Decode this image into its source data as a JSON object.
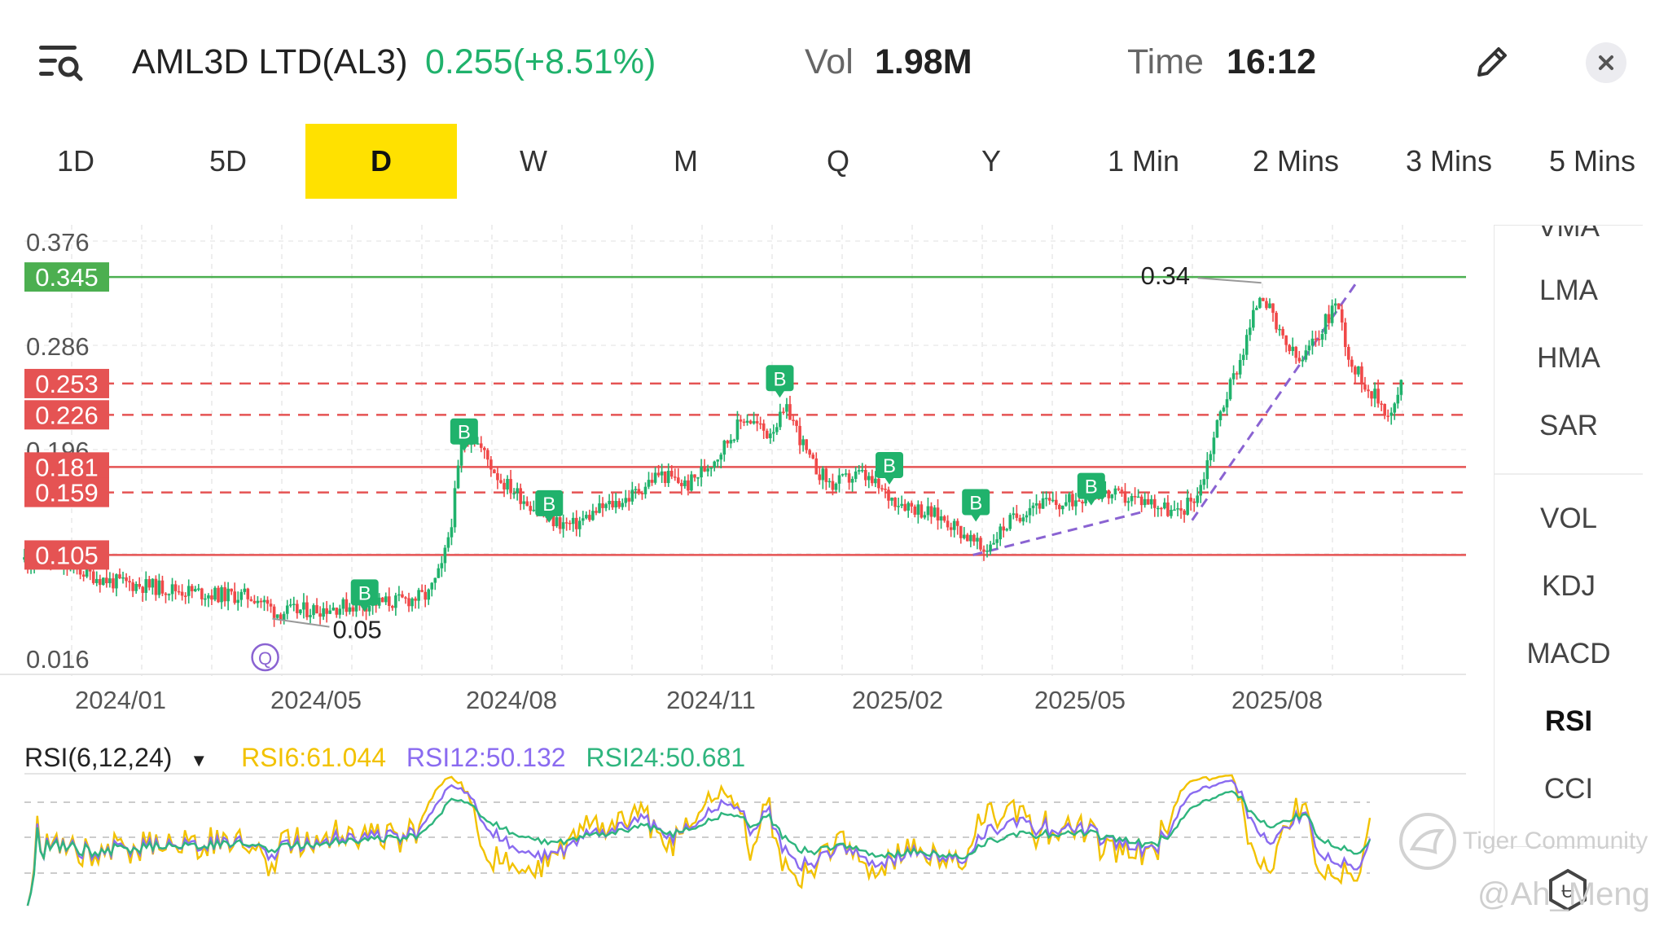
{
  "header": {
    "ticker": "AML3D LTD(AL3)",
    "price": "0.255(+8.51%)",
    "vol_label": "Vol",
    "vol_value": "1.98M",
    "time_label": "Time",
    "time_value": "16:12",
    "icons": {
      "menu": "list-search-icon",
      "edit": "pencil-icon",
      "close": "close-icon"
    }
  },
  "tabs": [
    {
      "label": "1D",
      "active": false
    },
    {
      "label": "5D",
      "active": false
    },
    {
      "label": "D",
      "active": true
    },
    {
      "label": "W",
      "active": false
    },
    {
      "label": "M",
      "active": false
    },
    {
      "label": "Q",
      "active": false
    },
    {
      "label": "Y",
      "active": false
    },
    {
      "label": "1 Min",
      "active": false
    },
    {
      "label": "2 Mins",
      "active": false
    },
    {
      "label": "3 Mins",
      "active": false
    },
    {
      "label": "5 Mins",
      "active": false
    }
  ],
  "side_panel": {
    "top_partial": "VMA",
    "main_items": [
      "LMA",
      "HMA",
      "SAR"
    ],
    "sub_items": [
      "VOL",
      "KDJ",
      "MACD",
      "RSI",
      "CCI"
    ],
    "active": "RSI"
  },
  "rsi_legend": {
    "label": "RSI(6,12,24)",
    "dropdown_icon": "caret-down-icon",
    "rsi6": "RSI6:61.044",
    "rsi12": "RSI12:50.132",
    "rsi24": "RSI24:50.681"
  },
  "watermark": {
    "brand": "Tiger Community",
    "user": "@Ah_Meng"
  },
  "colors": {
    "up": "#20b26c",
    "down": "#f04848",
    "active_tab": "#ffe100",
    "rsi6": "#f2c200",
    "rsi12": "#8a6bf0",
    "rsi24": "#2fb57e",
    "support_line": "#e55353",
    "resistance_line": "#4caf50",
    "trend_line": "#8a63d2"
  },
  "chart_data": [
    {
      "type": "candlestick",
      "x_tick_labels": [
        "2024/01",
        "2024/05",
        "2024/08",
        "2024/11",
        "2025/02",
        "2025/05",
        "2025/08"
      ],
      "y_tick_labels": [
        "0.376",
        "0.286",
        "0.196",
        "0.106",
        "0.016"
      ],
      "ylim": [
        0.016,
        0.376
      ],
      "grid": true,
      "price_levels": [
        {
          "value": 0.345,
          "label": "0.345",
          "style": "solid",
          "color": "green"
        },
        {
          "value": 0.253,
          "label": "0.253",
          "style": "dashed",
          "color": "red"
        },
        {
          "value": 0.226,
          "label": "0.226",
          "style": "dashed",
          "color": "red"
        },
        {
          "value": 0.181,
          "label": "0.181",
          "style": "solid",
          "color": "red"
        },
        {
          "value": 0.159,
          "label": "0.159",
          "style": "dashed",
          "color": "red"
        },
        {
          "value": 0.105,
          "label": "0.105",
          "style": "solid",
          "color": "red"
        }
      ],
      "annotations": [
        {
          "text": "0.34",
          "kind": "high",
          "x": 0.858,
          "price": 0.34
        },
        {
          "text": "0.05",
          "kind": "low",
          "x": 0.172,
          "price": 0.05
        }
      ],
      "buy_markers": [
        {
          "label": "B",
          "x": 0.236,
          "price": 0.06
        },
        {
          "label": "B",
          "x": 0.305,
          "price": 0.199
        },
        {
          "label": "B",
          "x": 0.364,
          "price": 0.137
        },
        {
          "label": "B",
          "x": 0.524,
          "price": 0.245
        },
        {
          "label": "B",
          "x": 0.6,
          "price": 0.17
        },
        {
          "label": "B",
          "x": 0.66,
          "price": 0.138
        },
        {
          "label": "B",
          "x": 0.74,
          "price": 0.152
        }
      ],
      "dip_marker": {
        "label": "Q",
        "x": 0.167
      },
      "trend_lines": [
        {
          "from": {
            "x": 0.658,
            "price": 0.105
          },
          "to": {
            "x": 0.775,
            "price": 0.142
          }
        },
        {
          "from": {
            "x": 0.81,
            "price": 0.135
          },
          "to": {
            "x": 0.925,
            "price": 0.342
          }
        }
      ],
      "price_path": [
        [
          0.0,
          0.101
        ],
        [
          0.03,
          0.095
        ],
        [
          0.06,
          0.082
        ],
        [
          0.1,
          0.076
        ],
        [
          0.13,
          0.071
        ],
        [
          0.16,
          0.069
        ],
        [
          0.175,
          0.055
        ],
        [
          0.2,
          0.058
        ],
        [
          0.23,
          0.062
        ],
        [
          0.26,
          0.065
        ],
        [
          0.28,
          0.07
        ],
        [
          0.29,
          0.095
        ],
        [
          0.297,
          0.14
        ],
        [
          0.303,
          0.2
        ],
        [
          0.31,
          0.21
        ],
        [
          0.33,
          0.17
        ],
        [
          0.35,
          0.15
        ],
        [
          0.365,
          0.135
        ],
        [
          0.38,
          0.13
        ],
        [
          0.4,
          0.145
        ],
        [
          0.42,
          0.155
        ],
        [
          0.44,
          0.175
        ],
        [
          0.46,
          0.165
        ],
        [
          0.48,
          0.19
        ],
        [
          0.5,
          0.225
        ],
        [
          0.515,
          0.21
        ],
        [
          0.53,
          0.23
        ],
        [
          0.545,
          0.185
        ],
        [
          0.56,
          0.165
        ],
        [
          0.58,
          0.175
        ],
        [
          0.6,
          0.155
        ],
        [
          0.62,
          0.145
        ],
        [
          0.64,
          0.135
        ],
        [
          0.655,
          0.12
        ],
        [
          0.665,
          0.108
        ],
        [
          0.68,
          0.13
        ],
        [
          0.7,
          0.15
        ],
        [
          0.72,
          0.148
        ],
        [
          0.74,
          0.16
        ],
        [
          0.76,
          0.155
        ],
        [
          0.78,
          0.152
        ],
        [
          0.8,
          0.14
        ],
        [
          0.815,
          0.16
        ],
        [
          0.83,
          0.23
        ],
        [
          0.845,
          0.28
        ],
        [
          0.858,
          0.335
        ],
        [
          0.87,
          0.295
        ],
        [
          0.885,
          0.27
        ],
        [
          0.9,
          0.3
        ],
        [
          0.91,
          0.325
        ],
        [
          0.92,
          0.27
        ],
        [
          0.935,
          0.245
        ],
        [
          0.948,
          0.225
        ],
        [
          0.955,
          0.252
        ]
      ]
    },
    {
      "type": "line",
      "title": "RSI(6,12,24)",
      "series": [
        {
          "name": "RSI6",
          "last": 61.044
        },
        {
          "name": "RSI12",
          "last": 50.132
        },
        {
          "name": "RSI24",
          "last": 50.681
        }
      ]
    }
  ]
}
